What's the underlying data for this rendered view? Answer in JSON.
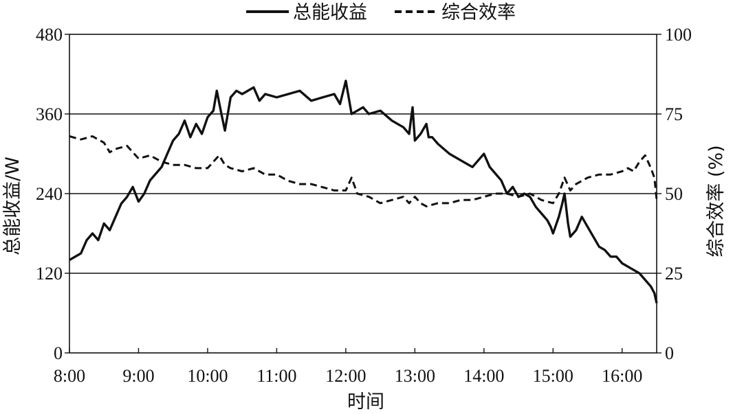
{
  "chart_data": {
    "type": "line",
    "x_axis": {
      "label": "时间",
      "ticks": [
        "8:00",
        "9:00",
        "10:00",
        "11:00",
        "12:00",
        "13:00",
        "14:00",
        "15:00",
        "16:00"
      ],
      "range": [
        "8:00",
        "16:30"
      ]
    },
    "y_axis_left": {
      "label": "总能收益/W",
      "range": [
        0,
        480
      ],
      "ticks": [
        "0",
        "120",
        "240",
        "360",
        "480"
      ]
    },
    "y_axis_right": {
      "label": "综合效率 (%)",
      "range": [
        0,
        100
      ],
      "ticks": [
        "0",
        "25",
        "50",
        "75",
        "100"
      ]
    },
    "grid": "horizontal",
    "legend_position": "top",
    "series": [
      {
        "name": "总能收益",
        "axis": "left",
        "style": "solid",
        "color": "#111111",
        "x": [
          "8:00",
          "8:10",
          "8:15",
          "8:20",
          "8:25",
          "8:30",
          "8:35",
          "8:40",
          "8:45",
          "8:50",
          "8:55",
          "9:00",
          "9:05",
          "9:10",
          "9:15",
          "9:20",
          "9:25",
          "9:30",
          "9:35",
          "9:40",
          "9:45",
          "9:50",
          "9:55",
          "10:00",
          "10:05",
          "10:08",
          "10:12",
          "10:15",
          "10:20",
          "10:25",
          "10:30",
          "10:40",
          "10:45",
          "10:50",
          "11:00",
          "11:10",
          "11:20",
          "11:30",
          "11:40",
          "11:50",
          "11:55",
          "12:00",
          "12:05",
          "12:10",
          "12:15",
          "12:20",
          "12:30",
          "12:40",
          "12:50",
          "12:55",
          "12:58",
          "13:00",
          "13:05",
          "13:10",
          "13:12",
          "13:15",
          "13:20",
          "13:30",
          "13:40",
          "13:50",
          "14:00",
          "14:05",
          "14:10",
          "14:15",
          "14:20",
          "14:25",
          "14:30",
          "14:35",
          "14:40",
          "14:45",
          "14:50",
          "14:55",
          "14:58",
          "15:00",
          "15:05",
          "15:08",
          "15:10",
          "15:13",
          "15:15",
          "15:20",
          "15:25",
          "15:30",
          "15:35",
          "15:40",
          "15:45",
          "15:50",
          "15:55",
          "16:00",
          "16:05",
          "16:10",
          "16:15",
          "16:20",
          "16:25",
          "16:28",
          "16:30"
        ],
        "values": [
          140,
          150,
          170,
          180,
          170,
          195,
          185,
          205,
          225,
          235,
          250,
          228,
          240,
          260,
          270,
          280,
          300,
          320,
          330,
          350,
          325,
          345,
          330,
          355,
          365,
          395,
          360,
          335,
          385,
          395,
          390,
          400,
          380,
          390,
          385,
          390,
          395,
          380,
          385,
          390,
          375,
          410,
          360,
          365,
          370,
          360,
          365,
          350,
          340,
          330,
          370,
          320,
          330,
          345,
          325,
          325,
          315,
          300,
          290,
          280,
          300,
          280,
          270,
          260,
          240,
          250,
          235,
          240,
          235,
          220,
          210,
          200,
          190,
          180,
          205,
          225,
          240,
          195,
          175,
          185,
          205,
          190,
          175,
          160,
          155,
          145,
          145,
          135,
          130,
          125,
          120,
          110,
          100,
          90,
          75
        ]
      },
      {
        "name": "综合效率",
        "axis": "right",
        "style": "dashed",
        "color": "#111111",
        "x": [
          "8:00",
          "8:10",
          "8:20",
          "8:30",
          "8:35",
          "8:40",
          "8:50",
          "9:00",
          "9:10",
          "9:20",
          "9:30",
          "9:40",
          "9:50",
          "10:00",
          "10:10",
          "10:15",
          "10:20",
          "10:30",
          "10:40",
          "10:50",
          "11:00",
          "11:10",
          "11:20",
          "11:30",
          "11:40",
          "11:50",
          "12:00",
          "12:05",
          "12:10",
          "12:20",
          "12:30",
          "12:40",
          "12:50",
          "12:55",
          "13:00",
          "13:05",
          "13:10",
          "13:20",
          "13:30",
          "13:40",
          "13:50",
          "14:00",
          "14:10",
          "14:20",
          "14:30",
          "14:40",
          "14:50",
          "15:00",
          "15:05",
          "15:10",
          "15:15",
          "15:20",
          "15:30",
          "15:40",
          "15:50",
          "16:00",
          "16:05",
          "16:10",
          "16:15",
          "16:20",
          "16:25",
          "16:28",
          "16:30"
        ],
        "values": [
          68,
          67,
          68,
          66,
          63,
          64,
          65,
          61,
          62,
          60,
          59,
          59,
          58,
          58,
          62,
          59,
          58,
          57,
          58,
          56,
          56,
          54,
          53,
          53,
          52,
          51,
          51,
          55,
          50,
          49,
          47,
          48,
          49,
          47,
          49,
          47,
          46,
          47,
          47,
          48,
          48,
          49,
          50,
          50,
          49,
          50,
          48,
          47,
          50,
          55,
          51,
          53,
          55,
          56,
          56,
          57,
          58,
          57,
          60,
          62,
          58,
          55,
          48
        ]
      }
    ]
  }
}
